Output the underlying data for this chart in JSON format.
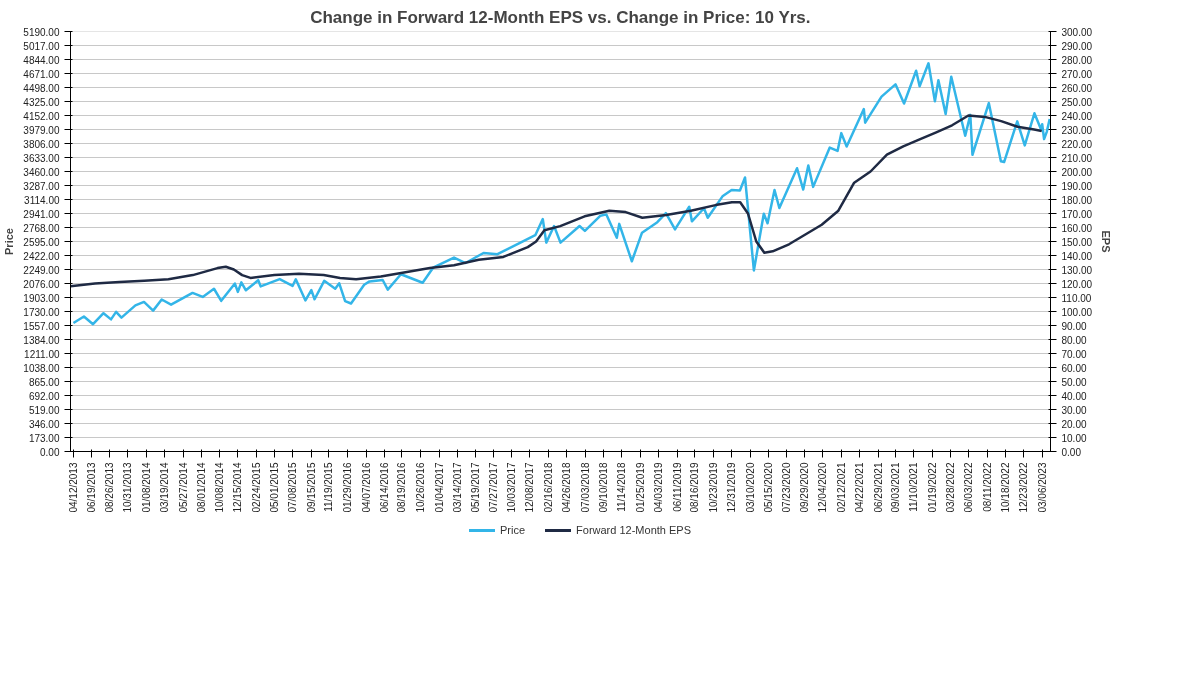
{
  "chart_data": {
    "type": "line",
    "title": "Change in Forward 12-Month EPS vs. Change in Price: 10 Yrs.",
    "ylabel": "Price",
    "y2label": "EPS",
    "ylim": [
      0,
      5190
    ],
    "yticks": [
      {
        "value": 0,
        "label": "0.00"
      },
      {
        "value": 173,
        "label": "173.00"
      },
      {
        "value": 346,
        "label": "346.00"
      },
      {
        "value": 519,
        "label": "519.00"
      },
      {
        "value": 692,
        "label": "692.00"
      },
      {
        "value": 865,
        "label": "865.00"
      },
      {
        "value": 1038,
        "label": "1038.00"
      },
      {
        "value": 1211,
        "label": "1211.00"
      },
      {
        "value": 1384,
        "label": "1384.00"
      },
      {
        "value": 1557,
        "label": "1557.00"
      },
      {
        "value": 1730,
        "label": "1730.00"
      },
      {
        "value": 1903,
        "label": "1903.00"
      },
      {
        "value": 2076,
        "label": "2076.00"
      },
      {
        "value": 2249,
        "label": "2249.00"
      },
      {
        "value": 2422,
        "label": "2422.00"
      },
      {
        "value": 2595,
        "label": "2595.00"
      },
      {
        "value": 2768,
        "label": "2768.00"
      },
      {
        "value": 2941,
        "label": "2941.00"
      },
      {
        "value": 3114,
        "label": "3114.00"
      },
      {
        "value": 3287,
        "label": "3287.00"
      },
      {
        "value": 3460,
        "label": "3460.00"
      },
      {
        "value": 3633,
        "label": "3633.00"
      },
      {
        "value": 3806,
        "label": "3806.00"
      },
      {
        "value": 3979,
        "label": "3979.00"
      },
      {
        "value": 4152,
        "label": "4152.00"
      },
      {
        "value": 4325,
        "label": "4325.00"
      },
      {
        "value": 4498,
        "label": "4498.00"
      },
      {
        "value": 4671,
        "label": "4671.00"
      },
      {
        "value": 4844,
        "label": "4844.00"
      },
      {
        "value": 5017,
        "label": "5017.00"
      },
      {
        "value": 5190,
        "label": "5190.00"
      }
    ],
    "y2lim": [
      0,
      300
    ],
    "y2ticks": [
      {
        "value": 0,
        "label": "0.00"
      },
      {
        "value": 10,
        "label": "10.00"
      },
      {
        "value": 20,
        "label": "20.00"
      },
      {
        "value": 30,
        "label": "30.00"
      },
      {
        "value": 40,
        "label": "40.00"
      },
      {
        "value": 50,
        "label": "50.00"
      },
      {
        "value": 60,
        "label": "60.00"
      },
      {
        "value": 70,
        "label": "70.00"
      },
      {
        "value": 80,
        "label": "80.00"
      },
      {
        "value": 90,
        "label": "90.00"
      },
      {
        "value": 100,
        "label": "100.00"
      },
      {
        "value": 110,
        "label": "110.00"
      },
      {
        "value": 120,
        "label": "120.00"
      },
      {
        "value": 130,
        "label": "130.00"
      },
      {
        "value": 140,
        "label": "140.00"
      },
      {
        "value": 150,
        "label": "150.00"
      },
      {
        "value": 160,
        "label": "160.00"
      },
      {
        "value": 170,
        "label": "170.00"
      },
      {
        "value": 180,
        "label": "180.00"
      },
      {
        "value": 190,
        "label": "190.00"
      },
      {
        "value": 200,
        "label": "200.00"
      },
      {
        "value": 210,
        "label": "210.00"
      },
      {
        "value": 220,
        "label": "220.00"
      },
      {
        "value": 230,
        "label": "230.00"
      },
      {
        "value": 240,
        "label": "240.00"
      },
      {
        "value": 250,
        "label": "250.00"
      },
      {
        "value": 260,
        "label": "260.00"
      },
      {
        "value": 270,
        "label": "270.00"
      },
      {
        "value": 280,
        "label": "280.00"
      },
      {
        "value": 290,
        "label": "290.00"
      },
      {
        "value": 300,
        "label": "300.00"
      }
    ],
    "xlim": [
      "2013-04-01",
      "2023-04-03"
    ],
    "xticks": [
      {
        "value": "2013-04-12",
        "label": "04/12/2013"
      },
      {
        "value": "2013-06-19",
        "label": "06/19/2013"
      },
      {
        "value": "2013-08-26",
        "label": "08/26/2013"
      },
      {
        "value": "2013-10-31",
        "label": "10/31/2013"
      },
      {
        "value": "2014-01-08",
        "label": "01/08/2014"
      },
      {
        "value": "2014-03-19",
        "label": "03/19/2014"
      },
      {
        "value": "2014-05-27",
        "label": "05/27/2014"
      },
      {
        "value": "2014-08-01",
        "label": "08/01/2014"
      },
      {
        "value": "2014-10-08",
        "label": "10/08/2014"
      },
      {
        "value": "2014-12-15",
        "label": "12/15/2014"
      },
      {
        "value": "2015-02-24",
        "label": "02/24/2015"
      },
      {
        "value": "2015-05-01",
        "label": "05/01/2015"
      },
      {
        "value": "2015-07-08",
        "label": "07/08/2015"
      },
      {
        "value": "2015-09-15",
        "label": "09/15/2015"
      },
      {
        "value": "2015-11-19",
        "label": "11/19/2015"
      },
      {
        "value": "2016-01-29",
        "label": "01/29/2016"
      },
      {
        "value": "2016-04-07",
        "label": "04/07/2016"
      },
      {
        "value": "2016-06-14",
        "label": "06/14/2016"
      },
      {
        "value": "2016-08-19",
        "label": "08/19/2016"
      },
      {
        "value": "2016-10-26",
        "label": "10/26/2016"
      },
      {
        "value": "2017-01-04",
        "label": "01/04/2017"
      },
      {
        "value": "2017-03-14",
        "label": "03/14/2017"
      },
      {
        "value": "2017-05-19",
        "label": "05/19/2017"
      },
      {
        "value": "2017-07-27",
        "label": "07/27/2017"
      },
      {
        "value": "2017-10-03",
        "label": "10/03/2017"
      },
      {
        "value": "2017-12-08",
        "label": "12/08/2017"
      },
      {
        "value": "2018-02-16",
        "label": "02/16/2018"
      },
      {
        "value": "2018-04-26",
        "label": "04/26/2018"
      },
      {
        "value": "2018-07-03",
        "label": "07/03/2018"
      },
      {
        "value": "2018-09-10",
        "label": "09/10/2018"
      },
      {
        "value": "2018-11-14",
        "label": "11/14/2018"
      },
      {
        "value": "2019-01-25",
        "label": "01/25/2019"
      },
      {
        "value": "2019-04-03",
        "label": "04/03/2019"
      },
      {
        "value": "2019-06-11",
        "label": "06/11/2019"
      },
      {
        "value": "2019-08-16",
        "label": "08/16/2019"
      },
      {
        "value": "2019-10-23",
        "label": "10/23/2019"
      },
      {
        "value": "2019-12-31",
        "label": "12/31/2019"
      },
      {
        "value": "2020-03-10",
        "label": "03/10/2020"
      },
      {
        "value": "2020-05-15",
        "label": "05/15/2020"
      },
      {
        "value": "2020-07-23",
        "label": "07/23/2020"
      },
      {
        "value": "2020-09-29",
        "label": "09/29/2020"
      },
      {
        "value": "2020-12-04",
        "label": "12/04/2020"
      },
      {
        "value": "2021-02-12",
        "label": "02/12/2021"
      },
      {
        "value": "2021-04-22",
        "label": "04/22/2021"
      },
      {
        "value": "2021-06-29",
        "label": "06/29/2021"
      },
      {
        "value": "2021-09-03",
        "label": "09/03/2021"
      },
      {
        "value": "2021-11-10",
        "label": "11/10/2021"
      },
      {
        "value": "2022-01-19",
        "label": "01/19/2022"
      },
      {
        "value": "2022-03-28",
        "label": "03/28/2022"
      },
      {
        "value": "2022-06-03",
        "label": "06/03/2022"
      },
      {
        "value": "2022-08-11",
        "label": "08/11/2022"
      },
      {
        "value": "2022-10-18",
        "label": "10/18/2022"
      },
      {
        "value": "2022-12-23",
        "label": "12/23/2022"
      },
      {
        "value": "2023-03-06",
        "label": "03/06/2023"
      }
    ],
    "grid": "y",
    "legend": "bottom",
    "tick_labels": "xy",
    "series": [
      {
        "name": "Price",
        "color": "#33b5e8",
        "x": [
          "2013-04-12",
          "2013-05-21",
          "2013-06-24",
          "2013-08-02",
          "2013-08-30",
          "2013-09-18",
          "2013-10-08",
          "2013-11-29",
          "2013-12-31",
          "2014-02-03",
          "2014-03-07",
          "2014-04-11",
          "2014-06-30",
          "2014-08-07",
          "2014-09-18",
          "2014-10-15",
          "2014-12-05",
          "2014-12-16",
          "2014-12-29",
          "2015-01-15",
          "2015-03-02",
          "2015-03-11",
          "2015-05-21",
          "2015-07-08",
          "2015-07-20",
          "2015-08-25",
          "2015-09-16",
          "2015-09-28",
          "2015-11-03",
          "2015-12-14",
          "2015-12-29",
          "2016-01-20",
          "2016-02-11",
          "2016-03-31",
          "2016-04-20",
          "2016-06-08",
          "2016-06-27",
          "2016-08-15",
          "2016-11-04",
          "2016-12-13",
          "2017-03-01",
          "2017-04-13",
          "2017-06-19",
          "2017-08-10",
          "2017-10-31",
          "2017-12-29",
          "2018-01-26",
          "2018-02-08",
          "2018-03-09",
          "2018-04-02",
          "2018-06-12",
          "2018-07-02",
          "2018-08-29",
          "2018-09-20",
          "2018-10-29",
          "2018-11-07",
          "2018-12-24",
          "2019-01-31",
          "2019-03-29",
          "2019-04-30",
          "2019-06-03",
          "2019-07-26",
          "2019-08-05",
          "2019-09-19",
          "2019-10-03",
          "2019-11-27",
          "2019-12-31",
          "2020-01-31",
          "2020-02-19",
          "2020-03-23",
          "2020-04-29",
          "2020-05-13",
          "2020-06-08",
          "2020-06-26",
          "2020-08-31",
          "2020-09-23",
          "2020-10-12",
          "2020-10-30",
          "2020-12-31",
          "2021-01-29",
          "2021-02-12",
          "2021-03-04",
          "2021-05-07",
          "2021-05-12",
          "2021-07-12",
          "2021-09-02",
          "2021-10-04",
          "2021-11-18",
          "2021-12-01",
          "2022-01-03",
          "2022-01-27",
          "2022-02-09",
          "2022-03-08",
          "2022-03-29",
          "2022-05-20",
          "2022-06-08",
          "2022-06-16",
          "2022-08-16",
          "2022-09-30",
          "2022-10-12",
          "2022-11-30",
          "2022-12-28",
          "2023-02-02",
          "2023-02-28",
          "2023-03-03",
          "2023-03-10",
          "2023-03-20",
          "2023-03-31"
        ],
        "values": [
          1588,
          1669,
          1573,
          1709,
          1633,
          1725,
          1655,
          1806,
          1848,
          1741,
          1878,
          1815,
          1960,
          1910,
          2011,
          1862,
          2075,
          1972,
          2090,
          1992,
          2117,
          2040,
          2131,
          2046,
          2128,
          1867,
          1995,
          1881,
          2109,
          2012,
          2078,
          1859,
          1829,
          2060,
          2102,
          2119,
          2000,
          2190,
          2085,
          2271,
          2396,
          2329,
          2453,
          2438,
          2575,
          2673,
          2872,
          2581,
          2786,
          2581,
          2786,
          2726,
          2914,
          2930,
          2641,
          2813,
          2351,
          2704,
          2834,
          2946,
          2744,
          3025,
          2844,
          3006,
          2888,
          3153,
          3231,
          3225,
          3386,
          2237,
          2939,
          2820,
          3232,
          3009,
          3500,
          3237,
          3534,
          3270,
          3756,
          3714,
          3934,
          3768,
          4232,
          4063,
          4385,
          4537,
          4300,
          4705,
          4513,
          4797,
          4327,
          4587,
          4170,
          4631,
          3901,
          4160,
          3667,
          4305,
          3586,
          3577,
          4080,
          3783,
          4179,
          3970,
          4045,
          3860,
          3950,
          4109
        ]
      },
      {
        "name": "Forward 12-Month EPS",
        "color": "#1f2a44",
        "axis": "y2",
        "x": [
          "2013-04",
          "2013-07",
          "2013-10",
          "2014-01",
          "2014-04",
          "2014-07",
          "2014-10",
          "2014-11",
          "2014-12",
          "2015-01",
          "2015-02",
          "2015-05",
          "2015-08",
          "2015-11",
          "2016-01",
          "2016-03",
          "2016-06",
          "2016-09",
          "2016-12",
          "2017-03",
          "2017-06",
          "2017-09",
          "2017-12",
          "2018-01",
          "2018-02",
          "2018-04",
          "2018-07",
          "2018-10",
          "2018-12",
          "2019-02",
          "2019-05",
          "2019-08",
          "2019-11",
          "2020-01",
          "2020-02",
          "2020-03",
          "2020-04",
          "2020-05",
          "2020-06",
          "2020-08",
          "2020-10",
          "2020-12",
          "2021-02",
          "2021-04",
          "2021-06",
          "2021-08",
          "2021-10",
          "2021-12",
          "2022-02",
          "2022-04",
          "2022-06",
          "2022-08",
          "2022-10",
          "2022-12",
          "2023-02",
          "2023-03"
        ],
        "values": [
          118,
          120,
          121,
          122,
          123,
          126,
          131,
          132,
          130,
          126,
          124,
          126,
          127,
          126,
          124,
          123,
          125,
          128,
          131,
          133,
          137,
          139,
          146,
          150,
          158,
          161,
          168,
          172,
          171,
          167,
          169,
          172,
          176,
          178,
          178,
          170,
          150,
          142,
          143,
          148,
          155,
          162,
          172,
          192,
          200,
          212,
          218,
          223,
          228,
          233,
          240,
          239,
          236,
          232,
          230,
          229
        ]
      }
    ]
  }
}
